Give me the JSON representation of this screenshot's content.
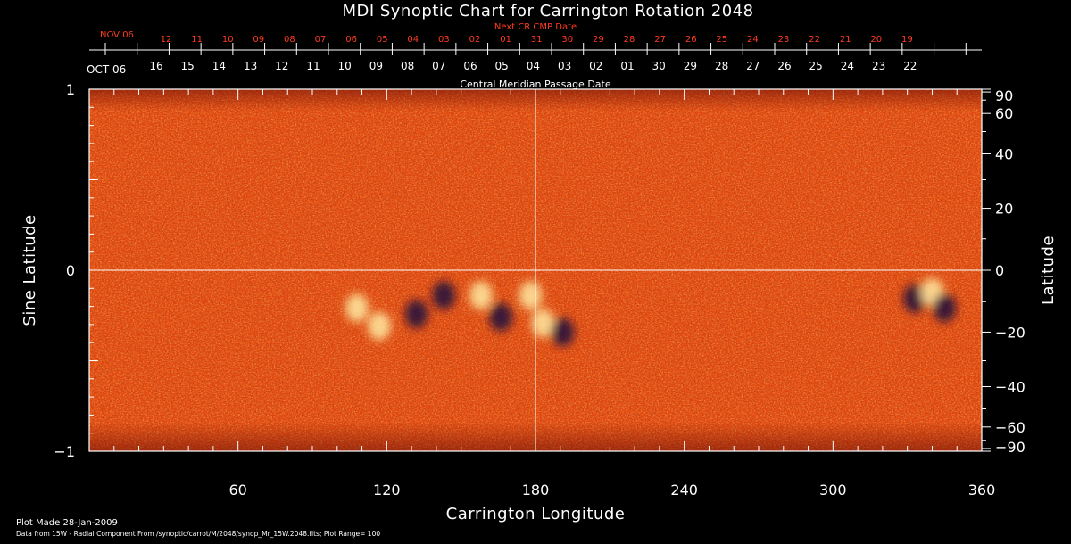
{
  "colors": {
    "background": "#000000",
    "field_base": "#e0460e",
    "field_bright": "#ffe9a0",
    "field_dark": "#1e0a3c",
    "axis": "#ffffff",
    "date_red": "#ff3b1e"
  },
  "footer": {
    "plot_made": "Plot Made 28-Jan-2009",
    "data_source": "Data from 15W - Radial Component From /synoptic/carrot/M/2048/synop_Mr_15W.2048.fits; Plot Range= 100"
  },
  "chart_data": {
    "type": "heatmap",
    "title": "MDI Synoptic Chart for Carrington Rotation 2048",
    "xlabel": "Carrington Longitude",
    "ylabel": "Sine Latitude",
    "ylabel_right": "Latitude",
    "xlim": [
      0,
      360
    ],
    "ylim": [
      -1,
      1
    ],
    "x_ticks": [
      60,
      120,
      180,
      240,
      300,
      360
    ],
    "y_ticks": [
      {
        "value": 1,
        "label": "1"
      },
      {
        "value": 0,
        "label": "0"
      },
      {
        "value": -1,
        "label": "−1"
      }
    ],
    "right_ticks": [
      {
        "lat": 90,
        "label": "90"
      },
      {
        "lat": 60,
        "label": "60"
      },
      {
        "lat": 40,
        "label": "40"
      },
      {
        "lat": 20,
        "label": "20"
      },
      {
        "lat": 0,
        "label": "0"
      },
      {
        "lat": -20,
        "label": "−20"
      },
      {
        "lat": -40,
        "label": "−40"
      },
      {
        "lat": -60,
        "label": "−60"
      },
      {
        "lat": -90,
        "label": "−90"
      }
    ],
    "cmp_axis_label": "Central Meridian Passage Date",
    "next_cr_label": "Next CR CMP Date",
    "cmp_month_label": "OCT 06",
    "next_cr_month_label": "NOV 06",
    "cmp_dates": [
      "16",
      "15",
      "14",
      "13",
      "12",
      "11",
      "10",
      "09",
      "08",
      "07",
      "06",
      "05",
      "04",
      "03",
      "02",
      "01",
      "30",
      "29",
      "28",
      "27",
      "26",
      "25",
      "24",
      "23",
      "22"
    ],
    "next_cr_dates": [
      "12",
      "11",
      "10",
      "09",
      "08",
      "07",
      "06",
      "05",
      "04",
      "03",
      "02",
      "01",
      "31",
      "30",
      "29",
      "28",
      "27",
      "26",
      "25",
      "24",
      "23",
      "22",
      "21",
      "20",
      "19"
    ],
    "active_regions": [
      {
        "lon": 108,
        "lat": -12,
        "polarity": "bright"
      },
      {
        "lon": 117,
        "lat": -18,
        "polarity": "bright"
      },
      {
        "lon": 132,
        "lat": -14,
        "polarity": "dark"
      },
      {
        "lon": 143,
        "lat": -8,
        "polarity": "dark"
      },
      {
        "lon": 158,
        "lat": -8,
        "polarity": "bright"
      },
      {
        "lon": 166,
        "lat": -15,
        "polarity": "dark"
      },
      {
        "lon": 178,
        "lat": -8,
        "polarity": "bright"
      },
      {
        "lon": 183,
        "lat": -17,
        "polarity": "bright"
      },
      {
        "lon": 191,
        "lat": -20,
        "polarity": "dark"
      },
      {
        "lon": 333,
        "lat": -9,
        "polarity": "dark"
      },
      {
        "lon": 340,
        "lat": -7,
        "polarity": "bright"
      },
      {
        "lon": 345,
        "lat": -12,
        "polarity": "dark"
      }
    ]
  }
}
